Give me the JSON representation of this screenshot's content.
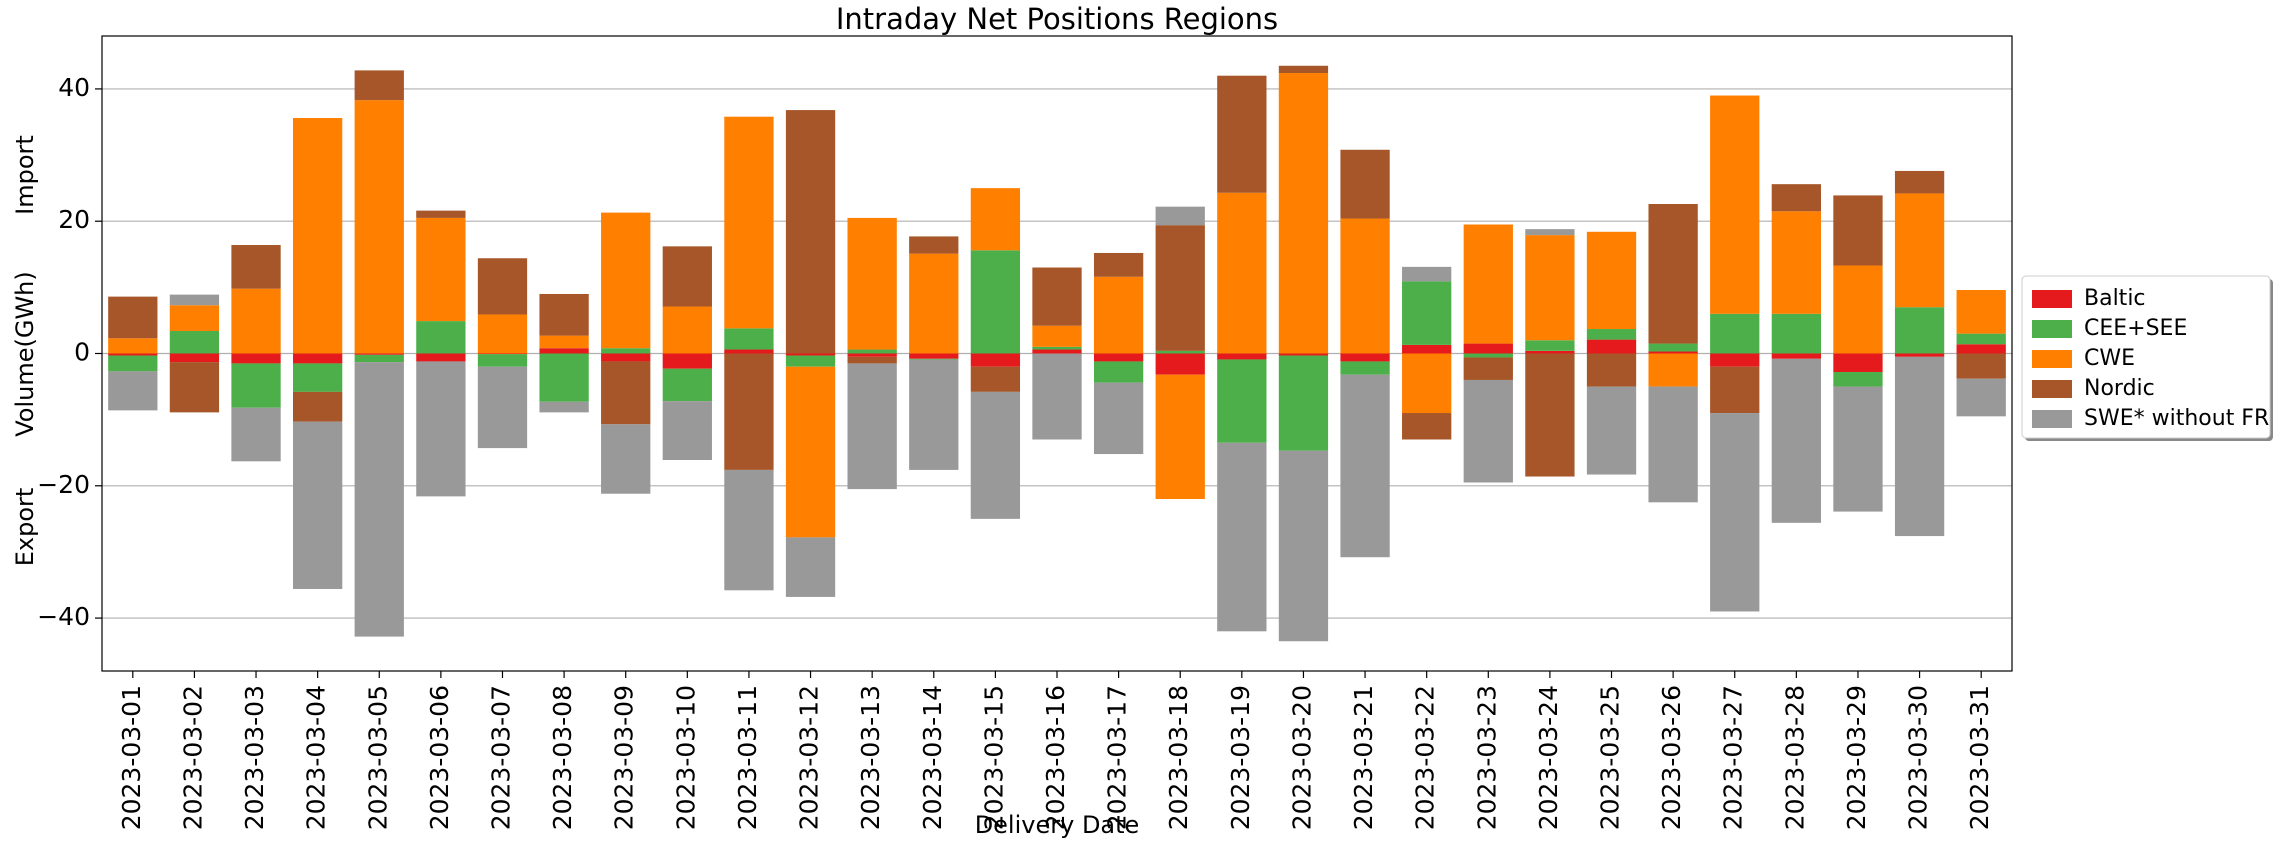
{
  "chart_data": {
    "type": "bar",
    "stacked": true,
    "title": "Intraday Net Positions Regions",
    "xlabel": "Delivery Date",
    "ylabel": "Volume(GWh)",
    "annotations": [
      "Import",
      "Export"
    ],
    "categories": [
      "2023-03-01",
      "2023-03-02",
      "2023-03-03",
      "2023-03-04",
      "2023-03-05",
      "2023-03-06",
      "2023-03-07",
      "2023-03-08",
      "2023-03-09",
      "2023-03-10",
      "2023-03-11",
      "2023-03-12",
      "2023-03-13",
      "2023-03-14",
      "2023-03-15",
      "2023-03-16",
      "2023-03-17",
      "2023-03-18",
      "2023-03-19",
      "2023-03-20",
      "2023-03-21",
      "2023-03-22",
      "2023-03-23",
      "2023-03-24",
      "2023-03-25",
      "2023-03-26",
      "2023-03-27",
      "2023-03-28",
      "2023-03-29",
      "2023-03-30",
      "2023-03-31"
    ],
    "series": [
      {
        "name": "Baltic",
        "color": "#e41a1c",
        "values": [
          -0.3,
          -1.3,
          -1.5,
          -1.5,
          -0.2,
          -1.2,
          -0.1,
          0.8,
          -1.2,
          -2.3,
          0.6,
          -0.3,
          -0.5,
          -0.8,
          -2,
          0.6,
          -1.2,
          -3.2,
          -0.9,
          -0.3,
          -1.2,
          1.3,
          1.5,
          0.4,
          2.1,
          0.3,
          -2,
          -0.8,
          -2.8,
          -0.5,
          1.4
        ]
      },
      {
        "name": "CEE+SEE",
        "color": "#4daf4a",
        "values": [
          -2.4,
          3.4,
          -6.7,
          -4.3,
          -1.1,
          4.9,
          -1.9,
          -7.3,
          0.8,
          -4.9,
          3.2,
          -1.7,
          0.6,
          -0.1,
          15.6,
          0.4,
          -3.2,
          0.4,
          -12.6,
          -14.4,
          -2,
          9.6,
          -0.6,
          1.6,
          1.6,
          1.2,
          6,
          6,
          -2.2,
          7,
          1.6
        ]
      },
      {
        "name": "CWE",
        "color": "#ff7f00",
        "values": [
          2.3,
          3.9,
          9.8,
          35.6,
          38.3,
          15.6,
          5.9,
          1.9,
          20.5,
          7.1,
          32,
          -25.8,
          19.9,
          15.1,
          9.4,
          3.2,
          11.6,
          -18.8,
          24.3,
          42.4,
          20.4,
          -9,
          18,
          15.9,
          14.7,
          -5,
          33,
          15.5,
          13.3,
          17.2,
          6.6
        ]
      },
      {
        "name": "Nordic",
        "color": "#a65628",
        "values": [
          6.3,
          -7.6,
          6.6,
          -4.5,
          4.5,
          1.1,
          8.5,
          6.3,
          -9.5,
          9.1,
          -17.6,
          36.8,
          -1,
          2.6,
          -3.8,
          8.8,
          3.6,
          19,
          17.7,
          1.1,
          10.4,
          -4,
          -3.4,
          -18.6,
          -5,
          21.1,
          -7,
          4.1,
          10.6,
          3.4,
          -3.8
        ]
      },
      {
        "name": "SWE* without FR",
        "color": "#999999",
        "values": [
          -5.9,
          1.6,
          -8.1,
          -25.3,
          -41.5,
          -20.4,
          -12.3,
          -1.6,
          -10.5,
          -8.9,
          -18.2,
          -9,
          -19,
          -16.7,
          -19.2,
          -13,
          -10.8,
          2.8,
          -28.5,
          -28.8,
          -27.6,
          2.2,
          -15.5,
          0.9,
          -13.3,
          -17.5,
          -30,
          -24.8,
          -18.9,
          -27.1,
          -5.7
        ]
      }
    ],
    "ylim": [
      -48,
      48
    ],
    "yticks": [
      {
        "value": -40,
        "label": "−40"
      },
      {
        "value": -20,
        "label": "−20"
      },
      0,
      20,
      40
    ],
    "grid": true,
    "legend": "right"
  }
}
